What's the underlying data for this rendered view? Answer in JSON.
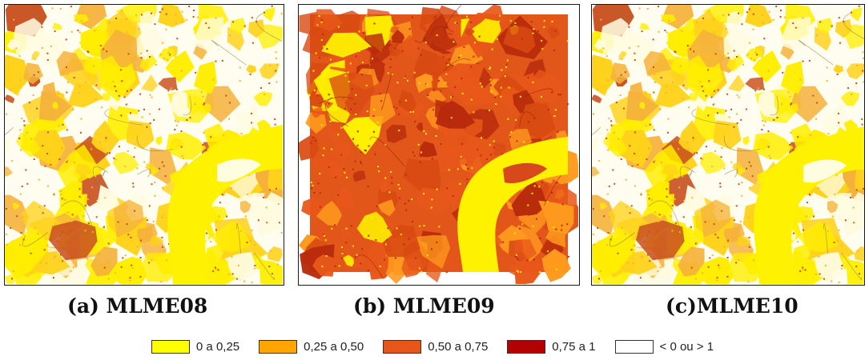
{
  "panels": [
    {
      "caption": "(a) MLME08",
      "palette": [
        "#ffee00",
        "#ffd21a",
        "#f5b23b",
        "#fffbe0",
        "#c94f1e"
      ]
    },
    {
      "caption": "(b) MLME09",
      "palette": [
        "#e8571a",
        "#d94a12",
        "#b82b0b",
        "#ff9a1e",
        "#fff200"
      ]
    },
    {
      "caption": "(c)MLME10",
      "palette": [
        "#ffee00",
        "#ffd21a",
        "#f5b23b",
        "#fffbe0",
        "#c94f1e"
      ]
    }
  ],
  "legend": [
    {
      "label": "0 a 0,25",
      "color": "#ffff00"
    },
    {
      "label": "0,25 a 0,50",
      "color": "#ffa500"
    },
    {
      "label": "0,50 a 0,75",
      "color": "#e6561a"
    },
    {
      "label": "0,75 a 1",
      "color": "#b30000"
    },
    {
      "label": "< 0 ou > 1",
      "color": "#ffffff"
    }
  ]
}
